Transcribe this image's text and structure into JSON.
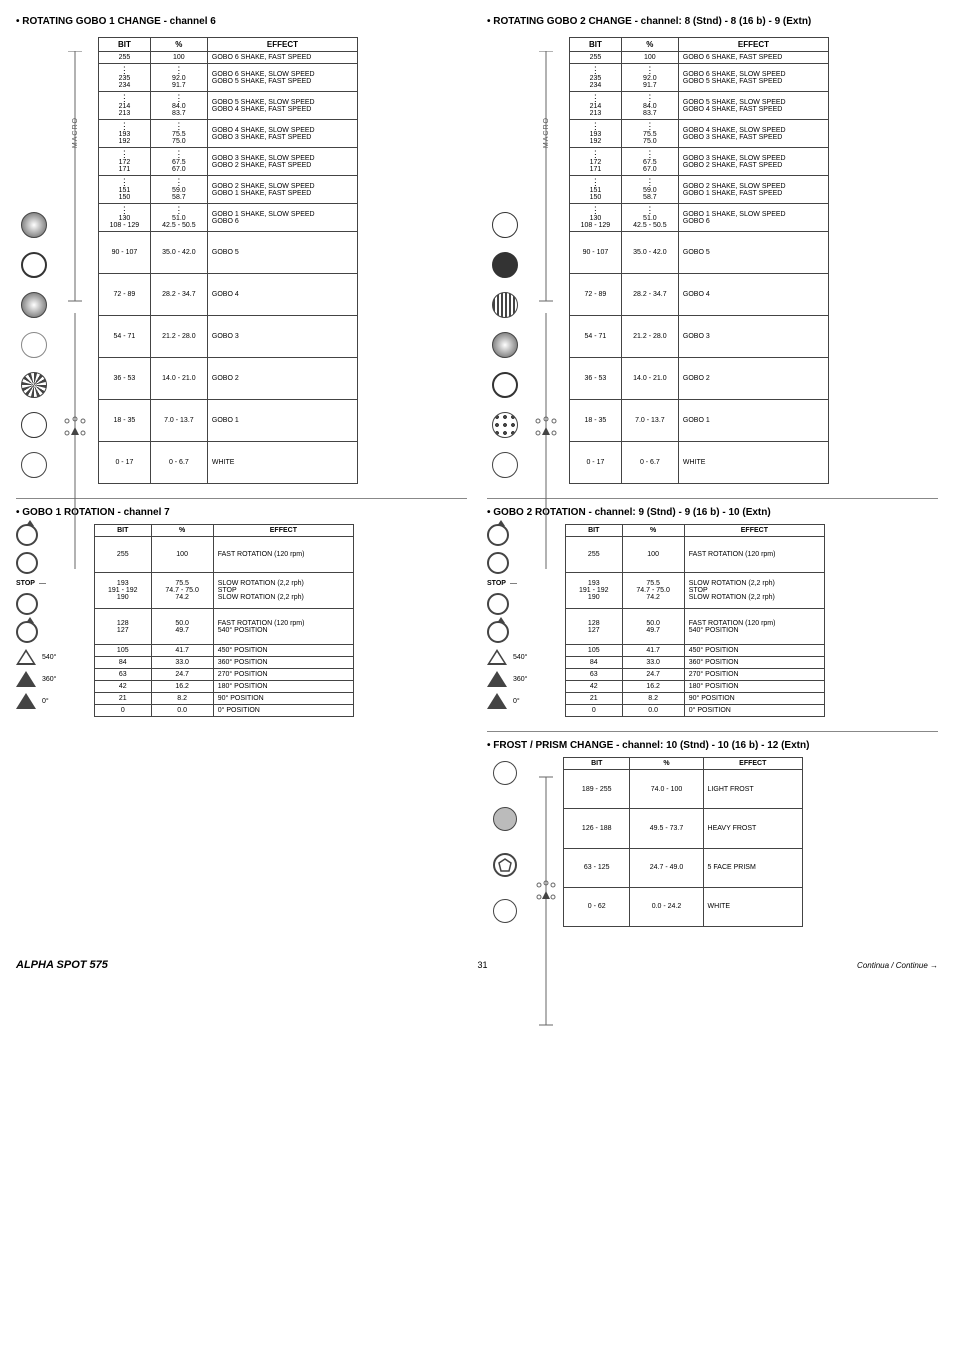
{
  "sections": {
    "gobo1_change": {
      "title": "• ROTATING GOBO 1  CHANGE - channel 6"
    },
    "gobo2_change": {
      "title": "• ROTATING GOBO 2  CHANGE - channel: 8 (Stnd) - 8 (16 b) - 9 (Extn)"
    },
    "gobo1_rot": {
      "title": "• GOBO 1 ROTATION - channel 7"
    },
    "gobo2_rot": {
      "title": "• GOBO 2 ROTATION  - channel: 9 (Stnd) - 9 (16 b) - 10 (Extn)"
    },
    "frost": {
      "title": "• FROST / PRISM CHANGE - channel: 10 (Stnd) - 10 (16 b) - 12 (Extn)"
    }
  },
  "headers": {
    "bit": "BIT",
    "pct": "%",
    "effect": "EFFECT"
  },
  "macro_label": "MACRO",
  "gobo_change_rows": [
    {
      "bit": "255",
      "pct": "100",
      "effect": "GOBO 6 SHAKE, FAST SPEED",
      "tall": false,
      "dots_before": false
    },
    {
      "bit": "235\n234",
      "pct": "92.0\n91.7",
      "effect": "GOBO 6 SHAKE, SLOW SPEED\nGOBO 5 SHAKE, FAST SPEED",
      "dots_before": true
    },
    {
      "bit": "214\n213",
      "pct": "84.0\n83.7",
      "effect": "GOBO 5 SHAKE, SLOW SPEED\nGOBO 4 SHAKE, FAST SPEED",
      "dots_before": true
    },
    {
      "bit": "193\n192",
      "pct": "75.5\n75.0",
      "effect": "GOBO 4 SHAKE, SLOW SPEED\nGOBO 3 SHAKE, FAST SPEED",
      "dots_before": true
    },
    {
      "bit": "172\n171",
      "pct": "67.5\n67.0",
      "effect": "GOBO 3 SHAKE, SLOW SPEED\nGOBO 2 SHAKE, FAST SPEED",
      "dots_before": true
    },
    {
      "bit": "151\n150",
      "pct": "59.0\n58.7",
      "effect": "GOBO 2 SHAKE, SLOW SPEED\nGOBO 1 SHAKE, FAST SPEED",
      "dots_before": true
    },
    {
      "bit": "130\n108 - 129",
      "pct": "51.0\n42.5 - 50.5",
      "effect": "GOBO 1 SHAKE, SLOW SPEED\nGOBO 6",
      "dots_before": true
    },
    {
      "bit": "90 - 107",
      "pct": "35.0 - 42.0",
      "effect": "GOBO 5",
      "tall": true
    },
    {
      "bit": "72 - 89",
      "pct": "28.2 - 34.7",
      "effect": "GOBO 4",
      "tall": true
    },
    {
      "bit": "54 - 71",
      "pct": "21.2 - 28.0",
      "effect": "GOBO 3",
      "tall": true
    },
    {
      "bit": "36 - 53",
      "pct": "14.0 - 21.0",
      "effect": "GOBO 2",
      "tall": true
    },
    {
      "bit": "18 - 35",
      "pct": "7.0 - 13.7",
      "effect": "GOBO 1",
      "tall": true
    },
    {
      "bit": "0 - 17",
      "pct": "0 - 6.7",
      "effect": "WHITE",
      "tall": true
    }
  ],
  "rotpos_icon_label": "STOP",
  "rotpos_angles": {
    "a540": "540°",
    "a360": "360°",
    "a0": "0°"
  },
  "gobo_rot_rows": [
    {
      "bit": "255",
      "pct": "100",
      "effect": "FAST ROTATION (120 rpm)",
      "tall": true
    },
    {
      "bit": "193\n191 - 192\n190",
      "pct": "75.5\n74.7 - 75.0\n74.2",
      "effect": "SLOW ROTATION (2,2 rph)\nSTOP\nSLOW ROTATION (2,2 rph)",
      "tall": true
    },
    {
      "bit": "128\n127",
      "pct": "50.0\n49.7",
      "effect": "FAST ROTATION (120 rpm)\n540° POSITION",
      "tall": true
    },
    {
      "bit": "105",
      "pct": "41.7",
      "effect": "450° POSITION"
    },
    {
      "bit": "84",
      "pct": "33.0",
      "effect": "360° POSITION"
    },
    {
      "bit": "63",
      "pct": "24.7",
      "effect": "270° POSITION"
    },
    {
      "bit": "42",
      "pct": "16.2",
      "effect": "180° POSITION"
    },
    {
      "bit": "21",
      "pct": "8.2",
      "effect": "90° POSITION"
    },
    {
      "bit": "0",
      "pct": "0.0",
      "effect": "0° POSITION"
    }
  ],
  "frost_rows": [
    {
      "bit": "189 - 255",
      "pct": "74.0 - 100",
      "effect": "LIGHT FROST"
    },
    {
      "bit": "126 - 188",
      "pct": "49.5 - 73.7",
      "effect": "HEAVY FROST"
    },
    {
      "bit": "63 - 125",
      "pct": "24.7 - 49.0",
      "effect": "5 FACE PRISM"
    },
    {
      "bit": "0 - 62",
      "pct": "0.0 - 24.2",
      "effect": "WHITE"
    }
  ],
  "footer": {
    "product": "ALPHA SPOT 575",
    "page": "31",
    "continue": "Continua / Continue  →"
  }
}
